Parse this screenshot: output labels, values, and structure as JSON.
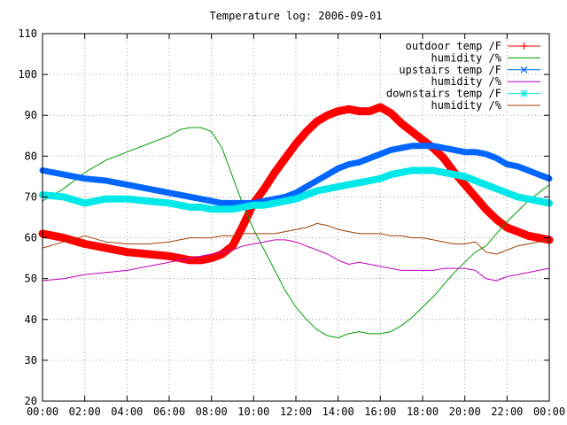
{
  "chart_data": {
    "type": "line",
    "title": "Temperature log: 2006-09-01",
    "xlabel": "",
    "ylabel": "",
    "ylim": [
      20,
      110
    ],
    "xlim": [
      0,
      24
    ],
    "grid": true,
    "legend_placement": "top-right",
    "y_ticks": [
      20,
      30,
      40,
      50,
      60,
      70,
      80,
      90,
      100,
      110
    ],
    "x_ticks": [
      {
        "value": 0,
        "label": "00:00"
      },
      {
        "value": 2,
        "label": "02:00"
      },
      {
        "value": 4,
        "label": "04:00"
      },
      {
        "value": 6,
        "label": "06:00"
      },
      {
        "value": 8,
        "label": "08:00"
      },
      {
        "value": 10,
        "label": "10:00"
      },
      {
        "value": 12,
        "label": "12:00"
      },
      {
        "value": 14,
        "label": "14:00"
      },
      {
        "value": 16,
        "label": "16:00"
      },
      {
        "value": 18,
        "label": "18:00"
      },
      {
        "value": 20,
        "label": "20:00"
      },
      {
        "value": 22,
        "label": "22:00"
      },
      {
        "value": 24,
        "label": "00:00"
      }
    ],
    "series": [
      {
        "name": "outdoor temp /F",
        "color": "#ff0000",
        "marker": "plus",
        "x": [
          0,
          1,
          2,
          3,
          4,
          5,
          6,
          6.5,
          7,
          7.5,
          8,
          8.5,
          9,
          9.5,
          10,
          10.5,
          11,
          11.5,
          12,
          12.5,
          13,
          13.5,
          14,
          14.5,
          15,
          15.5,
          16,
          16.5,
          17,
          17.5,
          18,
          18.5,
          19,
          19.5,
          20,
          20.5,
          21,
          21.5,
          22,
          22.5,
          23,
          23.5,
          24
        ],
        "y": [
          61,
          60,
          58.5,
          57.5,
          56.5,
          56,
          55.5,
          55,
          54.5,
          54.5,
          55,
          56,
          58,
          63,
          68.5,
          72,
          76,
          79.5,
          83,
          86,
          88.5,
          90,
          91,
          91.5,
          91,
          91,
          92,
          90.5,
          88,
          86,
          84,
          82,
          79.5,
          76,
          73,
          70,
          67,
          64.5,
          62.5,
          61.5,
          60.5,
          60,
          59.5
        ]
      },
      {
        "name": "humidity /%",
        "color": "#00a000",
        "marker": "none",
        "x": [
          0,
          1,
          2,
          3,
          4,
          5,
          6,
          6.5,
          7,
          7.5,
          8,
          8.5,
          9,
          9.5,
          10,
          10.5,
          11,
          11.5,
          12,
          12.5,
          13,
          13.5,
          14,
          14.5,
          15,
          15.5,
          16,
          16.5,
          17,
          17.5,
          18,
          18.5,
          19,
          19.5,
          20,
          20.5,
          21,
          21.5,
          22,
          22.5,
          23,
          23.5,
          24
        ],
        "y": [
          69,
          72,
          76,
          79,
          81,
          83,
          85,
          86.5,
          87,
          87,
          86,
          82,
          75,
          68,
          62,
          57,
          52,
          47,
          43,
          40,
          37.5,
          36,
          35.5,
          36.5,
          37,
          36.5,
          36.5,
          37,
          38.5,
          40.5,
          43,
          45.5,
          48.5,
          51.5,
          54,
          56.5,
          58,
          61,
          64,
          66.5,
          69,
          71,
          73
        ]
      },
      {
        "name": "upstairs temp /F",
        "color": "#0066ff",
        "marker": "cross",
        "x": [
          0,
          1,
          2,
          3,
          4,
          5,
          6,
          6.5,
          7,
          7.5,
          8,
          8.5,
          9,
          9.5,
          10,
          10.5,
          11,
          11.5,
          12,
          12.5,
          13,
          13.5,
          14,
          14.5,
          15,
          15.5,
          16,
          16.5,
          17,
          17.5,
          18,
          18.5,
          19,
          19.5,
          20,
          20.5,
          21,
          21.5,
          22,
          22.5,
          23,
          23.5,
          24
        ],
        "y": [
          76.5,
          75.5,
          74.5,
          74,
          73,
          72,
          71,
          70.5,
          70,
          69.5,
          69,
          68.5,
          68.5,
          68.5,
          68.5,
          69,
          69.5,
          70,
          71,
          72.5,
          74,
          75.5,
          77,
          78,
          78.5,
          79.5,
          80.5,
          81.5,
          82,
          82.5,
          82.5,
          82.5,
          82,
          81.5,
          81,
          81,
          80.5,
          79.5,
          78,
          77.5,
          76.5,
          75.5,
          74.5
        ]
      },
      {
        "name": "humidity /%",
        "color": "#c000c0",
        "marker": "none",
        "x": [
          0,
          1,
          2,
          3,
          4,
          5,
          6,
          6.5,
          7,
          7.5,
          8,
          8.5,
          9,
          9.5,
          10,
          10.5,
          11,
          11.5,
          12,
          12.5,
          13,
          13.5,
          14,
          14.5,
          15,
          15.5,
          16,
          16.5,
          17,
          17.5,
          18,
          18.5,
          19,
          19.5,
          20,
          20.5,
          21,
          21.5,
          22,
          22.5,
          23,
          23.5,
          24
        ],
        "y": [
          49.5,
          50,
          51,
          51.5,
          52,
          53,
          54,
          54.5,
          55,
          55.5,
          56,
          56.5,
          57,
          58,
          58.5,
          59,
          59.5,
          59.5,
          59,
          58,
          57,
          56,
          54.5,
          53.5,
          54,
          53.5,
          53,
          52.5,
          52,
          52,
          52,
          52,
          52.5,
          52.5,
          52.5,
          52,
          50,
          49.5,
          50.5,
          51,
          51.5,
          52,
          52.5
        ]
      },
      {
        "name": "downstairs temp /F",
        "color": "#00e8e8",
        "marker": "star",
        "x": [
          0,
          1,
          2,
          3,
          4,
          5,
          6,
          6.5,
          7,
          7.5,
          8,
          8.5,
          9,
          9.5,
          10,
          10.5,
          11,
          11.5,
          12,
          12.5,
          13,
          13.5,
          14,
          14.5,
          15,
          15.5,
          16,
          16.5,
          17,
          17.5,
          18,
          18.5,
          19,
          19.5,
          20,
          20.5,
          21,
          21.5,
          22,
          22.5,
          23,
          23.5,
          24
        ],
        "y": [
          70.5,
          70,
          68.5,
          69.5,
          69.5,
          69,
          68.5,
          68,
          67.5,
          67.5,
          67,
          67,
          67,
          67.5,
          68,
          68,
          68.5,
          69,
          69.5,
          70.5,
          71.5,
          72,
          72.5,
          73,
          73.5,
          74,
          74.5,
          75.5,
          76,
          76.5,
          76.5,
          76.5,
          76,
          75.5,
          75,
          74,
          73,
          72,
          71,
          70,
          69.5,
          69,
          68.5
        ]
      },
      {
        "name": "humidity /%",
        "color": "#a04000",
        "marker": "none",
        "x": [
          0,
          1,
          2,
          3,
          4,
          5,
          6,
          6.5,
          7,
          7.5,
          8,
          8.5,
          9,
          9.5,
          10,
          10.5,
          11,
          11.5,
          12,
          12.5,
          13,
          13.5,
          14,
          14.5,
          15,
          15.5,
          16,
          16.5,
          17,
          17.5,
          18,
          18.5,
          19,
          19.5,
          20,
          20.5,
          21,
          21.5,
          22,
          22.5,
          23,
          23.5,
          24
        ],
        "y": [
          57.5,
          59,
          60.5,
          59,
          58.5,
          58.5,
          59,
          59.5,
          60,
          60,
          60,
          60.5,
          60.5,
          61,
          61,
          61,
          61,
          61.5,
          62,
          62.5,
          63.5,
          63,
          62,
          61.5,
          61,
          61,
          61,
          60.5,
          60.5,
          60,
          60,
          59.5,
          59,
          58.5,
          58.5,
          59,
          56.5,
          56,
          57,
          58,
          58.5,
          59,
          59.5
        ]
      }
    ]
  }
}
